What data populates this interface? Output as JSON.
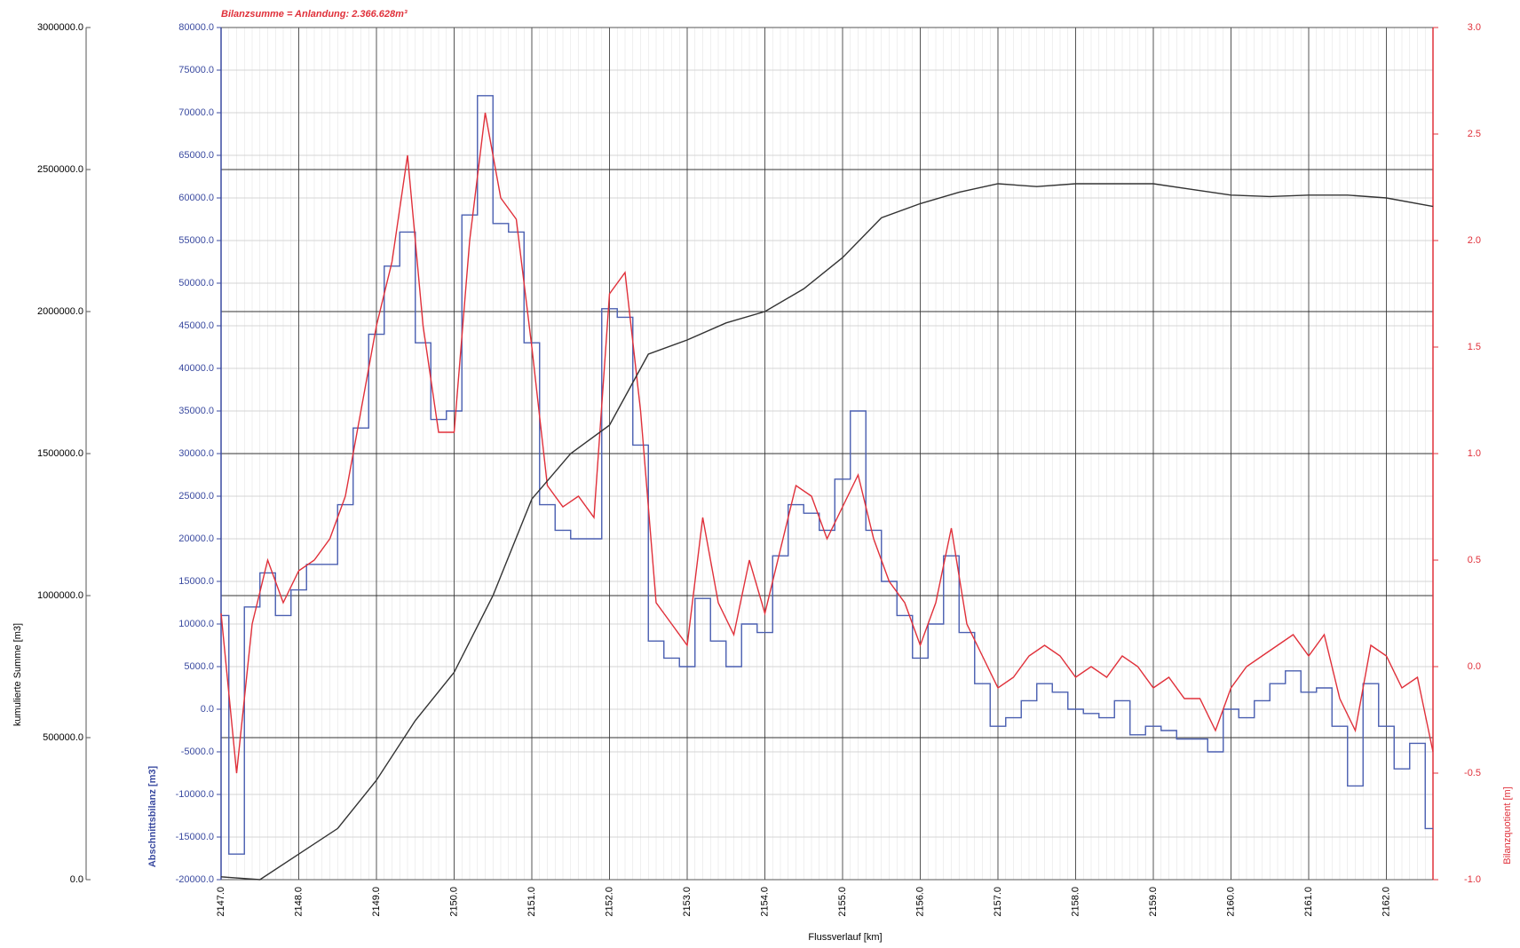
{
  "chart_data": {
    "type": "line",
    "title": "Bilanzsumme = Anlandung:  2.366.628m³",
    "xlabel": "Flussverlauf [km]",
    "ylabel": "Abschnittsbilanz [m3]",
    "y2label": "Bilanzquotient [m]",
    "y3label": "kumulierte Summe [m3]",
    "xlim": [
      2147.0,
      2162.6
    ],
    "xticks": [
      {
        "value": 2147,
        "label": "2147.0"
      },
      {
        "value": 2148,
        "label": "2148.0"
      },
      {
        "value": 2149,
        "label": "2149.0"
      },
      {
        "value": 2150,
        "label": "2150.0"
      },
      {
        "value": 2151,
        "label": "2151.0"
      },
      {
        "value": 2152,
        "label": "2152.0"
      },
      {
        "value": 2153,
        "label": "2153.0"
      },
      {
        "value": 2154,
        "label": "2154.0"
      },
      {
        "value": 2155,
        "label": "2155.0"
      },
      {
        "value": 2156,
        "label": "2156.0"
      },
      {
        "value": 2157,
        "label": "2157.0"
      },
      {
        "value": 2158,
        "label": "2158.0"
      },
      {
        "value": 2159,
        "label": "2159.0"
      },
      {
        "value": 2160,
        "label": "2160.0"
      },
      {
        "value": 2161,
        "label": "2161.0"
      },
      {
        "value": 2162,
        "label": "2162.0"
      }
    ],
    "ylim": [
      -20000,
      80000
    ],
    "yticks": [
      {
        "value": -20000,
        "label": "-20000.0"
      },
      {
        "value": -15000,
        "label": "-15000.0"
      },
      {
        "value": -10000,
        "label": "-10000.0"
      },
      {
        "value": -5000,
        "label": "-5000.0"
      },
      {
        "value": 0,
        "label": "0.0"
      },
      {
        "value": 5000,
        "label": "5000.0"
      },
      {
        "value": 10000,
        "label": "10000.0"
      },
      {
        "value": 15000,
        "label": "15000.0"
      },
      {
        "value": 20000,
        "label": "20000.0"
      },
      {
        "value": 25000,
        "label": "25000.0"
      },
      {
        "value": 30000,
        "label": "30000.0"
      },
      {
        "value": 35000,
        "label": "35000.0"
      },
      {
        "value": 40000,
        "label": "40000.0"
      },
      {
        "value": 45000,
        "label": "45000.0"
      },
      {
        "value": 50000,
        "label": "50000.0"
      },
      {
        "value": 55000,
        "label": "55000.0"
      },
      {
        "value": 60000,
        "label": "60000.0"
      },
      {
        "value": 65000,
        "label": "65000.0"
      },
      {
        "value": 70000,
        "label": "70000.0"
      },
      {
        "value": 75000,
        "label": "75000.0"
      },
      {
        "value": 80000,
        "label": "80000.0"
      }
    ],
    "y2lim": [
      -1.0,
      3.0
    ],
    "y2ticks": [
      {
        "value": -1,
        "label": "-1.0"
      },
      {
        "value": -0.5,
        "label": "-0.5"
      },
      {
        "value": 0,
        "label": "0.0"
      },
      0.5,
      {
        "value": 1,
        "label": "1.0"
      },
      1.5,
      {
        "value": 2,
        "label": "2.0"
      },
      2.5,
      {
        "value": 3,
        "label": "3.0"
      }
    ],
    "y3lim": [
      0,
      3000000
    ],
    "y3ticks": [
      {
        "value": 0,
        "label": "0.0"
      },
      {
        "value": 500000,
        "label": "500000.0"
      },
      {
        "value": 1000000,
        "label": "1000000.0"
      },
      {
        "value": 1500000,
        "label": "1500000.0"
      },
      {
        "value": 2000000,
        "label": "2000000.0"
      },
      {
        "value": 2500000,
        "label": "2500000.0"
      },
      {
        "value": 3000000,
        "label": "3000000.0"
      }
    ],
    "grid": true,
    "series": [
      {
        "color": "#4a5fb0",
        "drawstyle": "steps-mid",
        "x": [
          2147.0,
          2147.2,
          2147.4,
          2147.6,
          2147.8,
          2148.0,
          2148.2,
          2148.4,
          2148.6,
          2148.8,
          2149.0,
          2149.2,
          2149.4,
          2149.6,
          2149.8,
          2150.0,
          2150.2,
          2150.4,
          2150.6,
          2150.8,
          2151.0,
          2151.2,
          2151.4,
          2151.6,
          2151.8,
          2152.0,
          2152.2,
          2152.4,
          2152.6,
          2152.8,
          2153.0,
          2153.2,
          2153.4,
          2153.6,
          2153.8,
          2154.0,
          2154.2,
          2154.4,
          2154.6,
          2154.8,
          2155.0,
          2155.2,
          2155.4,
          2155.6,
          2155.8,
          2156.0,
          2156.2,
          2156.4,
          2156.6,
          2156.8,
          2157.0,
          2157.2,
          2157.4,
          2157.6,
          2157.8,
          2158.0,
          2158.2,
          2158.4,
          2158.6,
          2158.8,
          2159.0,
          2159.2,
          2159.4,
          2159.6,
          2159.8,
          2160.0,
          2160.2,
          2160.4,
          2160.6,
          2160.8,
          2161.0,
          2161.2,
          2161.4,
          2161.6,
          2161.8,
          2162.0,
          2162.2,
          2162.4,
          2162.6
        ],
        "values": [
          11000,
          -17000,
          12000,
          16000,
          11000,
          14000,
          17000,
          17000,
          24000,
          33000,
          44000,
          52000,
          56000,
          43000,
          34000,
          35000,
          58000,
          72000,
          57000,
          56000,
          43000,
          24000,
          21000,
          20000,
          20000,
          47000,
          46000,
          31000,
          8000,
          6000,
          5000,
          13000,
          8000,
          5000,
          10000,
          9000,
          18000,
          24000,
          23000,
          21000,
          27000,
          35000,
          21000,
          15000,
          11000,
          6000,
          10000,
          18000,
          9000,
          3000,
          -2000,
          -1000,
          1000,
          3000,
          2000,
          0,
          -500,
          -1000,
          1000,
          -3000,
          -2000,
          -2500,
          -3500,
          -3500,
          -5000,
          0,
          -1000,
          1000,
          3000,
          4500,
          2000,
          2500,
          -2000,
          -9000,
          3000,
          -2000,
          -7000,
          -4000,
          -14000
        ]
      },
      {
        "color": "#e0303a",
        "axis": "y2",
        "x": [
          2147.0,
          2147.2,
          2147.4,
          2147.6,
          2147.8,
          2148.0,
          2148.2,
          2148.4,
          2148.6,
          2148.8,
          2149.0,
          2149.2,
          2149.4,
          2149.6,
          2149.8,
          2150.0,
          2150.2,
          2150.4,
          2150.6,
          2150.8,
          2151.0,
          2151.2,
          2151.4,
          2151.6,
          2151.8,
          2152.0,
          2152.2,
          2152.4,
          2152.6,
          2152.8,
          2153.0,
          2153.2,
          2153.4,
          2153.6,
          2153.8,
          2154.0,
          2154.2,
          2154.4,
          2154.6,
          2154.8,
          2155.0,
          2155.2,
          2155.4,
          2155.6,
          2155.8,
          2156.0,
          2156.2,
          2156.4,
          2156.6,
          2156.8,
          2157.0,
          2157.2,
          2157.4,
          2157.6,
          2157.8,
          2158.0,
          2158.2,
          2158.4,
          2158.6,
          2158.8,
          2159.0,
          2159.2,
          2159.4,
          2159.6,
          2159.8,
          2160.0,
          2160.2,
          2160.4,
          2160.6,
          2160.8,
          2161.0,
          2161.2,
          2161.4,
          2161.6,
          2161.8,
          2162.0,
          2162.2,
          2162.4,
          2162.6
        ],
        "values": [
          0.25,
          -0.5,
          0.2,
          0.5,
          0.3,
          0.45,
          0.5,
          0.6,
          0.8,
          1.2,
          1.6,
          1.9,
          2.4,
          1.6,
          1.1,
          1.1,
          2.0,
          2.6,
          2.2,
          2.1,
          1.5,
          0.85,
          0.75,
          0.8,
          0.7,
          1.75,
          1.85,
          1.2,
          0.3,
          0.2,
          0.1,
          0.7,
          0.3,
          0.15,
          0.5,
          0.25,
          0.55,
          0.85,
          0.8,
          0.6,
          0.75,
          0.9,
          0.6,
          0.4,
          0.3,
          0.1,
          0.3,
          0.65,
          0.2,
          0.05,
          -0.1,
          -0.05,
          0.05,
          0.1,
          0.05,
          -0.05,
          0.0,
          -0.05,
          0.05,
          0.0,
          -0.1,
          -0.05,
          -0.15,
          -0.15,
          -0.3,
          -0.1,
          0.0,
          0.05,
          0.1,
          0.15,
          0.05,
          0.15,
          -0.15,
          -0.3,
          0.1,
          0.05,
          -0.1,
          -0.05,
          -0.4
        ]
      },
      {
        "color": "#333333",
        "axis": "y3",
        "x": [
          2147.0,
          2147.5,
          2148.0,
          2148.5,
          2149.0,
          2149.5,
          2150.0,
          2150.5,
          2151.0,
          2151.5,
          2152.0,
          2152.5,
          2153.0,
          2153.5,
          2154.0,
          2154.5,
          2155.0,
          2155.5,
          2156.0,
          2156.5,
          2157.0,
          2157.5,
          2158.0,
          2158.5,
          2159.0,
          2159.5,
          2160.0,
          2160.5,
          2161.0,
          2161.5,
          2162.0,
          2162.6
        ],
        "values": [
          10000,
          0,
          90000,
          180000,
          350000,
          560000,
          730000,
          1000000,
          1340000,
          1500000,
          1600000,
          1850000,
          1900000,
          1960000,
          2000000,
          2080000,
          2190000,
          2330000,
          2380000,
          2420000,
          2450000,
          2440000,
          2450000,
          2450000,
          2450000,
          2430000,
          2410000,
          2405000,
          2410000,
          2410000,
          2400000,
          2370000
        ]
      }
    ]
  }
}
